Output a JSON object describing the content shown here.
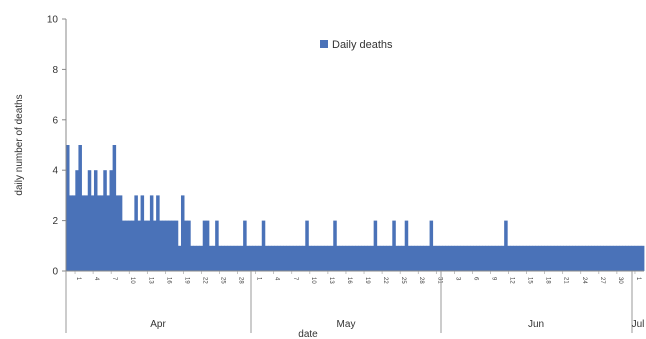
{
  "chart_data": {
    "type": "bar",
    "title": "",
    "ylabel": "daily number of deaths",
    "xlabel": "date",
    "ylim": [
      0,
      10
    ],
    "yticks": [
      0,
      2,
      4,
      6,
      8,
      10
    ],
    "grid": false,
    "legend_position": "top-center",
    "series": [
      {
        "name": "Daily deaths",
        "color": "#4a72b8",
        "values": [
          5,
          3,
          3,
          4,
          5,
          3,
          3,
          4,
          3,
          4,
          3,
          3,
          4,
          3,
          4,
          5,
          3,
          3,
          2,
          2,
          2,
          2,
          3,
          2,
          3,
          2,
          2,
          3,
          2,
          3,
          2,
          2,
          2,
          2,
          2,
          2,
          1,
          3,
          2,
          2,
          1,
          1,
          1,
          1,
          2,
          2,
          1,
          1,
          2,
          1,
          1,
          1,
          1,
          1,
          1,
          1,
          1,
          2,
          1,
          1,
          1,
          1,
          1,
          2,
          1,
          1,
          1,
          1,
          1,
          1,
          1,
          1,
          1,
          1,
          1,
          1,
          1,
          2,
          1,
          1,
          1,
          1,
          1,
          1,
          1,
          1,
          2,
          1,
          1,
          1,
          1,
          1,
          1,
          1,
          1,
          1,
          1,
          1,
          1,
          2,
          1,
          1,
          1,
          1,
          1,
          2,
          1,
          1,
          1,
          2,
          1,
          1,
          1,
          1,
          1,
          1,
          1,
          2,
          1,
          1,
          1,
          1,
          1,
          1,
          1,
          1,
          1,
          1,
          1,
          1,
          1,
          1,
          1,
          1,
          1,
          1,
          1,
          1,
          1,
          1,
          1,
          2,
          1,
          1,
          1,
          1,
          1,
          1,
          1,
          1,
          1,
          1,
          1,
          1,
          1,
          1,
          1,
          1,
          1,
          1,
          1,
          1,
          1,
          1,
          1,
          1,
          1,
          1,
          1,
          1,
          1,
          1,
          1,
          1,
          1,
          1,
          1,
          1,
          1,
          1,
          1,
          1,
          1,
          1,
          1,
          1
        ]
      }
    ],
    "months": [
      "Apr",
      "May",
      "Jun",
      "Jul"
    ],
    "day_labels": [
      "1",
      "4",
      "7",
      "10",
      "13",
      "16",
      "19",
      "22",
      "25",
      "28",
      "1",
      "4",
      "7",
      "10",
      "13",
      "16",
      "19",
      "22",
      "25",
      "28",
      "31",
      "3",
      "6",
      "9",
      "12",
      "15",
      "18",
      "21",
      "24",
      "27",
      "30",
      "1"
    ]
  }
}
